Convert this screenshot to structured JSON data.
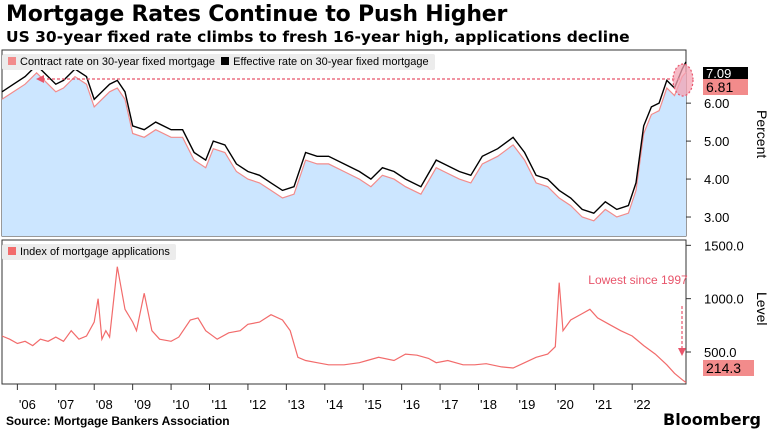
{
  "header": {
    "title": "Mortgage Rates Continue to Push Higher",
    "subtitle": "US 30-year fixed rate climbs to fresh 16-year high, applications decline"
  },
  "footer": {
    "source": "Source: Mortgage Bankers Association",
    "brand": "Bloomberg"
  },
  "chart_data": [
    {
      "type": "area",
      "ylabel": "Percent",
      "ylim": [
        2.5,
        7.4
      ],
      "yticks": [
        3.0,
        4.0,
        5.0,
        6.0
      ],
      "ytick_labels": [
        "3.00",
        "4.00",
        "5.00",
        "6.00"
      ],
      "xlim": [
        2005.6,
        2023.4
      ],
      "grid": false,
      "legend_placement": "top-left",
      "series": [
        {
          "name": "Contract rate on 30-year fixed mortgage",
          "color": "#f28b8b",
          "fill": "#cce6ff",
          "last_value_label": "6.81",
          "x": [
            2005.6,
            2005.9,
            2006.2,
            2006.5,
            2006.8,
            2007.0,
            2007.2,
            2007.5,
            2007.8,
            2008.0,
            2008.2,
            2008.4,
            2008.6,
            2008.8,
            2009.0,
            2009.3,
            2009.6,
            2010.0,
            2010.3,
            2010.6,
            2010.9,
            2011.1,
            2011.4,
            2011.7,
            2012.0,
            2012.3,
            2012.6,
            2012.9,
            2013.2,
            2013.5,
            2013.8,
            2014.1,
            2014.5,
            2014.9,
            2015.2,
            2015.5,
            2015.8,
            2016.1,
            2016.5,
            2016.9,
            2017.1,
            2017.5,
            2017.8,
            2018.1,
            2018.5,
            2018.9,
            2019.2,
            2019.5,
            2019.8,
            2020.1,
            2020.4,
            2020.7,
            2021.0,
            2021.3,
            2021.6,
            2021.9,
            2022.1,
            2022.3,
            2022.5,
            2022.7,
            2022.9,
            2023.1,
            2023.3,
            2023.4
          ],
          "values": [
            6.1,
            6.3,
            6.5,
            6.8,
            6.5,
            6.3,
            6.4,
            6.7,
            6.5,
            5.9,
            6.1,
            6.3,
            6.4,
            6.1,
            5.2,
            5.1,
            5.3,
            5.1,
            5.1,
            4.5,
            4.3,
            4.8,
            4.7,
            4.2,
            4.0,
            3.9,
            3.7,
            3.5,
            3.6,
            4.5,
            4.4,
            4.4,
            4.2,
            4.0,
            3.8,
            4.1,
            4.0,
            3.8,
            3.6,
            4.3,
            4.2,
            4.0,
            3.9,
            4.4,
            4.6,
            4.9,
            4.5,
            3.9,
            3.8,
            3.5,
            3.3,
            3.0,
            2.9,
            3.2,
            3.0,
            3.1,
            3.7,
            5.2,
            5.7,
            5.8,
            6.4,
            6.2,
            6.7,
            6.81
          ]
        },
        {
          "name": "Effective rate on 30-year fixed mortgage",
          "color": "#000000",
          "last_value_label": "7.09",
          "x": [
            2005.6,
            2005.9,
            2006.2,
            2006.5,
            2006.8,
            2007.0,
            2007.2,
            2007.5,
            2007.8,
            2008.0,
            2008.2,
            2008.4,
            2008.6,
            2008.8,
            2009.0,
            2009.3,
            2009.6,
            2010.0,
            2010.3,
            2010.6,
            2010.9,
            2011.1,
            2011.4,
            2011.7,
            2012.0,
            2012.3,
            2012.6,
            2012.9,
            2013.2,
            2013.5,
            2013.8,
            2014.1,
            2014.5,
            2014.9,
            2015.2,
            2015.5,
            2015.8,
            2016.1,
            2016.5,
            2016.9,
            2017.1,
            2017.5,
            2017.8,
            2018.1,
            2018.5,
            2018.9,
            2019.2,
            2019.5,
            2019.8,
            2020.1,
            2020.4,
            2020.7,
            2021.0,
            2021.3,
            2021.6,
            2021.9,
            2022.1,
            2022.3,
            2022.5,
            2022.7,
            2022.9,
            2023.1,
            2023.3,
            2023.4
          ],
          "values": [
            6.3,
            6.5,
            6.7,
            7.0,
            6.7,
            6.5,
            6.6,
            6.9,
            6.7,
            6.1,
            6.3,
            6.5,
            6.6,
            6.3,
            5.4,
            5.3,
            5.5,
            5.3,
            5.3,
            4.7,
            4.5,
            5.0,
            4.9,
            4.4,
            4.2,
            4.1,
            3.9,
            3.7,
            3.8,
            4.7,
            4.6,
            4.6,
            4.4,
            4.2,
            4.0,
            4.3,
            4.2,
            4.0,
            3.8,
            4.5,
            4.4,
            4.2,
            4.1,
            4.6,
            4.8,
            5.1,
            4.7,
            4.1,
            4.0,
            3.7,
            3.5,
            3.2,
            3.1,
            3.4,
            3.2,
            3.3,
            3.9,
            5.4,
            5.9,
            6.0,
            6.6,
            6.4,
            6.9,
            7.09
          ]
        }
      ]
    },
    {
      "type": "line",
      "ylabel": "Level",
      "ylim": [
        200,
        1550
      ],
      "yticks": [
        500,
        1000,
        1500
      ],
      "ytick_labels": [
        "500.0",
        "1000.0",
        "1500.0"
      ],
      "xlim": [
        2005.6,
        2023.4
      ],
      "grid": false,
      "legend_placement": "top-left",
      "categories_ticks": [
        "'06",
        "'07",
        "'08",
        "'09",
        "'10",
        "'11",
        "'12",
        "'13",
        "'14",
        "'15",
        "'16",
        "'17",
        "'18",
        "'19",
        "'20",
        "'21",
        "'22"
      ],
      "annotation": "Lowest since 1997",
      "series": [
        {
          "name": "Index of mortgage applications",
          "color": "#f26b6b",
          "last_value_label": "214.3",
          "x": [
            2005.6,
            2005.8,
            2006.0,
            2006.2,
            2006.4,
            2006.6,
            2006.8,
            2007.0,
            2007.2,
            2007.4,
            2007.6,
            2007.8,
            2008.0,
            2008.1,
            2008.2,
            2008.3,
            2008.4,
            2008.6,
            2008.8,
            2009.0,
            2009.1,
            2009.3,
            2009.5,
            2009.7,
            2010.0,
            2010.2,
            2010.5,
            2010.7,
            2010.9,
            2011.2,
            2011.5,
            2011.8,
            2012.0,
            2012.3,
            2012.6,
            2012.9,
            2013.1,
            2013.3,
            2013.5,
            2013.8,
            2014.1,
            2014.5,
            2014.9,
            2015.1,
            2015.4,
            2015.8,
            2016.1,
            2016.4,
            2016.7,
            2016.9,
            2017.2,
            2017.6,
            2017.9,
            2018.2,
            2018.6,
            2018.9,
            2019.2,
            2019.5,
            2019.8,
            2020.0,
            2020.1,
            2020.2,
            2020.4,
            2020.7,
            2020.9,
            2021.1,
            2021.4,
            2021.7,
            2022.0,
            2022.3,
            2022.6,
            2022.9,
            2023.1,
            2023.3,
            2023.4
          ],
          "values": [
            650,
            620,
            580,
            600,
            560,
            620,
            600,
            640,
            600,
            700,
            620,
            650,
            780,
            1000,
            620,
            700,
            640,
            1300,
            900,
            780,
            700,
            1050,
            700,
            620,
            600,
            640,
            800,
            820,
            700,
            620,
            680,
            700,
            760,
            780,
            850,
            800,
            700,
            450,
            420,
            400,
            380,
            380,
            400,
            420,
            450,
            420,
            480,
            470,
            440,
            400,
            420,
            380,
            380,
            390,
            360,
            350,
            400,
            450,
            480,
            550,
            1150,
            700,
            800,
            860,
            900,
            820,
            760,
            700,
            650,
            560,
            480,
            380,
            300,
            240,
            214.3
          ]
        }
      ]
    }
  ]
}
